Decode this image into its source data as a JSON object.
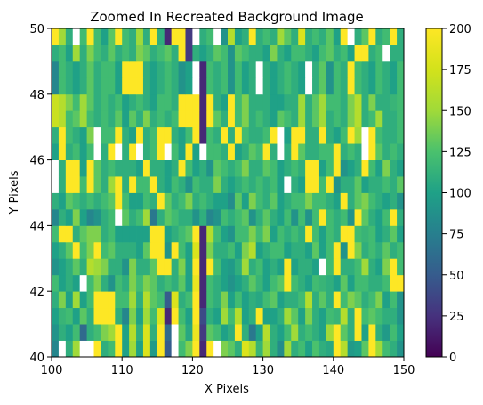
{
  "chart_data": {
    "type": "heatmap",
    "title": "Zoomed In Recreated Background Image",
    "xlabel": "X Pixels",
    "ylabel": "Y Pixels",
    "xlim": [
      100,
      150
    ],
    "ylim": [
      40,
      50
    ],
    "x_ticks": [
      "100",
      "110",
      "120",
      "130",
      "140",
      "150"
    ],
    "y_ticks": [
      "40",
      "42",
      "44",
      "46",
      "48",
      "50"
    ],
    "colormap": "viridis",
    "clim": [
      0,
      200
    ],
    "colorbar_ticks": [
      "0",
      "25",
      "50",
      "75",
      "100",
      "125",
      "150",
      "175",
      "200"
    ],
    "x_edges": [
      100,
      101,
      102,
      103,
      104,
      105,
      106,
      107,
      108,
      109,
      110,
      111,
      112,
      113,
      114,
      115,
      116,
      117,
      118,
      119,
      120,
      121,
      122,
      123,
      124,
      125,
      126,
      127,
      128,
      129,
      130,
      131,
      132,
      133,
      134,
      135,
      136,
      137,
      138,
      139,
      140,
      141,
      142,
      143,
      144,
      145,
      146,
      147,
      148,
      149,
      150
    ],
    "y_edges": [
      40,
      40.5,
      41,
      41.5,
      42,
      42.5,
      43,
      43.5,
      44,
      44.5,
      45,
      45.5,
      46,
      46.5,
      47,
      47.5,
      48,
      48.5,
      49,
      49.5,
      50
    ],
    "values": [
      [
        80,
        255,
        110,
        150,
        255,
        255,
        200,
        110,
        120,
        200,
        100,
        150,
        100,
        180,
        95,
        200,
        50,
        230,
        120,
        140,
        200,
        20,
        200,
        255,
        140,
        130,
        110,
        180,
        160,
        115,
        150,
        110,
        85,
        150,
        110,
        120,
        100,
        125,
        110,
        105,
        200,
        160,
        95,
        100,
        130,
        200,
        150,
        120,
        110,
        90
      ],
      [
        90,
        110,
        100,
        120,
        60,
        110,
        120,
        140,
        150,
        200,
        100,
        160,
        110,
        180,
        110,
        200,
        60,
        210,
        130,
        105,
        190,
        30,
        130,
        120,
        100,
        110,
        200,
        110,
        70,
        100,
        160,
        110,
        100,
        120,
        150,
        110,
        120,
        110,
        100,
        150,
        200,
        130,
        110,
        200,
        100,
        200,
        110,
        95,
        120,
        100
      ],
      [
        100,
        115,
        120,
        100,
        130,
        110,
        200,
        200,
        200,
        110,
        80,
        140,
        100,
        150,
        120,
        180,
        20,
        200,
        120,
        100,
        200,
        40,
        110,
        100,
        150,
        120,
        160,
        100,
        110,
        200,
        100,
        100,
        110,
        150,
        130,
        100,
        140,
        110,
        100,
        120,
        115,
        160,
        110,
        200,
        120,
        130,
        120,
        110,
        110,
        90
      ],
      [
        110,
        140,
        100,
        150,
        100,
        120,
        200,
        200,
        200,
        120,
        120,
        150,
        110,
        160,
        130,
        120,
        50,
        180,
        110,
        120,
        200,
        20,
        120,
        110,
        140,
        100,
        120,
        100,
        110,
        105,
        120,
        130,
        100,
        110,
        110,
        120,
        160,
        110,
        130,
        110,
        200,
        120,
        140,
        130,
        110,
        120,
        140,
        100,
        120,
        90
      ],
      [
        120,
        100,
        110,
        100,
        255,
        120,
        140,
        110,
        90,
        120,
        110,
        140,
        120,
        140,
        130,
        110,
        120,
        110,
        130,
        100,
        190,
        20,
        120,
        110,
        100,
        90,
        100,
        110,
        130,
        115,
        100,
        120,
        130,
        200,
        120,
        110,
        100,
        120,
        115,
        110,
        100,
        130,
        100,
        120,
        120,
        110,
        110,
        120,
        200,
        200
      ],
      [
        90,
        100,
        110,
        130,
        110,
        160,
        150,
        140,
        110,
        110,
        90,
        140,
        110,
        110,
        130,
        200,
        200,
        110,
        140,
        100,
        200,
        20,
        200,
        120,
        100,
        95,
        110,
        150,
        110,
        120,
        100,
        110,
        100,
        200,
        100,
        110,
        110,
        100,
        255,
        120,
        200,
        110,
        110,
        120,
        150,
        110,
        100,
        140,
        200,
        120
      ],
      [
        100,
        110,
        130,
        200,
        120,
        140,
        200,
        120,
        130,
        110,
        110,
        110,
        100,
        130,
        200,
        200,
        90,
        200,
        120,
        100,
        180,
        20,
        140,
        110,
        110,
        120,
        100,
        140,
        160,
        100,
        110,
        120,
        120,
        100,
        110,
        110,
        100,
        130,
        100,
        120,
        200,
        90,
        200,
        140,
        110,
        120,
        110,
        130,
        110,
        120
      ],
      [
        120,
        200,
        200,
        110,
        130,
        140,
        140,
        110,
        120,
        100,
        100,
        100,
        100,
        100,
        200,
        200,
        100,
        110,
        120,
        130,
        200,
        20,
        160,
        120,
        100,
        90,
        120,
        120,
        140,
        120,
        140,
        100,
        120,
        110,
        120,
        110,
        200,
        120,
        100,
        120,
        110,
        200,
        200,
        120,
        115,
        120,
        100,
        110,
        130,
        100
      ],
      [
        80,
        110,
        100,
        140,
        100,
        80,
        90,
        110,
        120,
        255,
        130,
        110,
        120,
        150,
        70,
        110,
        130,
        120,
        110,
        110,
        90,
        110,
        80,
        90,
        120,
        110,
        120,
        130,
        90,
        110,
        130,
        110,
        100,
        120,
        90,
        120,
        90,
        120,
        200,
        120,
        110,
        120,
        90,
        200,
        130,
        110,
        100,
        120,
        200,
        110
      ],
      [
        110,
        100,
        130,
        120,
        110,
        120,
        110,
        120,
        130,
        200,
        120,
        100,
        100,
        120,
        110,
        200,
        130,
        110,
        120,
        140,
        110,
        120,
        110,
        100,
        100,
        85,
        130,
        100,
        140,
        120,
        110,
        130,
        100,
        110,
        120,
        120,
        140,
        120,
        120,
        110,
        100,
        200,
        110,
        130,
        140,
        120,
        110,
        100,
        110,
        90
      ],
      [
        255,
        110,
        200,
        200,
        120,
        200,
        130,
        110,
        150,
        200,
        110,
        200,
        120,
        120,
        200,
        110,
        100,
        120,
        110,
        90,
        120,
        110,
        110,
        140,
        110,
        100,
        110,
        120,
        110,
        120,
        110,
        120,
        100,
        255,
        110,
        100,
        200,
        200,
        120,
        200,
        90,
        110,
        110,
        130,
        100,
        110,
        110,
        120,
        110,
        130
      ],
      [
        255,
        110,
        200,
        200,
        100,
        200,
        130,
        110,
        120,
        110,
        110,
        110,
        100,
        200,
        110,
        110,
        100,
        110,
        200,
        120,
        100,
        110,
        90,
        130,
        120,
        110,
        120,
        140,
        110,
        110,
        130,
        120,
        100,
        110,
        120,
        110,
        200,
        200,
        100,
        120,
        200,
        90,
        100,
        110,
        200,
        120,
        100,
        140,
        110,
        100
      ],
      [
        100,
        200,
        110,
        120,
        100,
        120,
        255,
        110,
        200,
        255,
        110,
        200,
        255,
        110,
        120,
        200,
        255,
        120,
        100,
        200,
        100,
        255,
        120,
        120,
        110,
        200,
        100,
        110,
        130,
        120,
        200,
        110,
        255,
        110,
        200,
        130,
        110,
        110,
        120,
        120,
        200,
        110,
        120,
        110,
        255,
        200,
        130,
        110,
        120,
        110
      ],
      [
        110,
        200,
        120,
        110,
        100,
        140,
        255,
        120,
        120,
        200,
        110,
        100,
        200,
        110,
        120,
        200,
        200,
        110,
        100,
        120,
        200,
        20,
        120,
        110,
        200,
        110,
        200,
        120,
        110,
        110,
        120,
        200,
        255,
        100,
        200,
        200,
        110,
        110,
        200,
        110,
        100,
        120,
        200,
        150,
        255,
        200,
        120,
        110,
        110,
        120
      ],
      [
        170,
        160,
        120,
        130,
        150,
        120,
        110,
        120,
        110,
        130,
        100,
        130,
        110,
        140,
        110,
        120,
        110,
        120,
        200,
        200,
        200,
        20,
        200,
        130,
        110,
        200,
        120,
        140,
        110,
        120,
        110,
        100,
        130,
        120,
        110,
        150,
        110,
        130,
        150,
        110,
        120,
        110,
        140,
        160,
        110,
        120,
        150,
        110,
        110,
        120
      ],
      [
        170,
        160,
        140,
        120,
        150,
        130,
        110,
        120,
        110,
        120,
        100,
        110,
        120,
        110,
        100,
        120,
        120,
        110,
        200,
        200,
        200,
        20,
        200,
        110,
        100,
        200,
        120,
        140,
        110,
        110,
        110,
        100,
        100,
        110,
        110,
        150,
        110,
        130,
        150,
        120,
        120,
        110,
        140,
        160,
        110,
        140,
        110,
        110,
        115,
        120
      ],
      [
        80,
        120,
        110,
        100,
        110,
        130,
        110,
        120,
        120,
        100,
        200,
        200,
        200,
        110,
        100,
        110,
        120,
        110,
        90,
        100,
        255,
        20,
        120,
        110,
        120,
        90,
        120,
        100,
        110,
        255,
        110,
        100,
        110,
        120,
        110,
        100,
        255,
        110,
        130,
        90,
        120,
        110,
        200,
        120,
        110,
        100,
        120,
        110,
        100,
        120
      ],
      [
        80,
        120,
        110,
        100,
        110,
        130,
        110,
        120,
        120,
        100,
        200,
        200,
        200,
        110,
        100,
        110,
        120,
        110,
        90,
        100,
        255,
        20,
        120,
        110,
        120,
        90,
        120,
        100,
        110,
        255,
        110,
        100,
        110,
        120,
        110,
        100,
        255,
        110,
        130,
        90,
        120,
        110,
        200,
        120,
        110,
        100,
        120,
        110,
        100,
        120
      ],
      [
        110,
        120,
        100,
        150,
        110,
        140,
        120,
        110,
        130,
        110,
        120,
        110,
        140,
        130,
        110,
        120,
        130,
        110,
        200,
        30,
        110,
        100,
        110,
        130,
        120,
        90,
        130,
        120,
        110,
        110,
        100,
        140,
        110,
        100,
        120,
        120,
        110,
        100,
        120,
        130,
        110,
        120,
        100,
        200,
        200,
        110,
        120,
        255,
        110,
        110
      ],
      [
        200,
        150,
        110,
        255,
        120,
        200,
        120,
        100,
        130,
        200,
        120,
        110,
        150,
        110,
        200,
        110,
        20,
        200,
        200,
        30,
        255,
        110,
        120,
        255,
        90,
        160,
        100,
        110,
        200,
        110,
        120,
        110,
        150,
        130,
        110,
        180,
        110,
        120,
        110,
        130,
        100,
        200,
        255,
        110,
        130,
        200,
        110,
        120,
        200,
        110
      ]
    ]
  }
}
